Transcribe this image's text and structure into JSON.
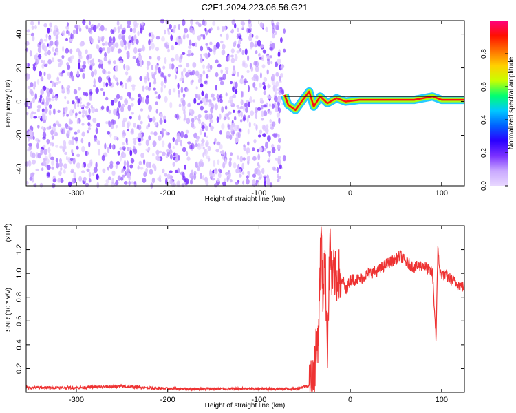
{
  "figure": {
    "title": "C2E1.2024.223.06.56.G21"
  },
  "chart_data": [
    {
      "type": "heatmap",
      "xlabel": "Height of straight line (km)",
      "ylabel": "Frequency (Hz)",
      "xlim": [
        -355,
        125
      ],
      "ylim": [
        -50,
        48
      ],
      "xticks": [
        -300,
        -200,
        -100,
        0,
        100
      ],
      "yticks": [
        -40,
        -20,
        0,
        20,
        40
      ],
      "colorbar": {
        "label": "Normalized spectral amplitude",
        "range": [
          0,
          1
        ],
        "ticks": [
          0.0,
          0.2,
          0.4,
          0.6,
          0.8
        ],
        "colors": [
          "#e8d8ff",
          "#c9a8ff",
          "#7a30ff",
          "#2a00ff",
          "#0060ff",
          "#00c8ff",
          "#00ff70",
          "#c8ff00",
          "#ffd000",
          "#ff7000",
          "#ff1000",
          "#ff0080"
        ]
      },
      "features": {
        "noise_region_x": [
          -355,
          -72
        ],
        "noise_amplitude_range": [
          0.02,
          0.2
        ],
        "signal_start_x": -72,
        "signal_ridge": [
          {
            "x": -72,
            "y": 4
          },
          {
            "x": -68,
            "y": -2
          },
          {
            "x": -60,
            "y": -5
          },
          {
            "x": -52,
            "y": 1
          },
          {
            "x": -45,
            "y": 6
          },
          {
            "x": -40,
            "y": -3
          },
          {
            "x": -33,
            "y": 3
          },
          {
            "x": -25,
            "y": -1
          },
          {
            "x": -15,
            "y": 2
          },
          {
            "x": -5,
            "y": 0
          },
          {
            "x": 10,
            "y": 1
          },
          {
            "x": 40,
            "y": 1
          },
          {
            "x": 70,
            "y": 1
          },
          {
            "x": 90,
            "y": 3
          },
          {
            "x": 100,
            "y": 1
          },
          {
            "x": 125,
            "y": 1
          }
        ]
      }
    },
    {
      "type": "line",
      "xlabel": "Height of straight line (km)",
      "ylabel": "SNR (10 * v/v)",
      "yscale_label": "(x10",
      "yscale_exponent": "4",
      "yscale_suffix": ")",
      "xlim": [
        -355,
        125
      ],
      "ylim": [
        0,
        1.4
      ],
      "xticks": [
        -300,
        -200,
        -100,
        0,
        100
      ],
      "yticks": [
        0.2,
        0.4,
        0.6,
        0.8,
        1.0,
        1.2
      ],
      "series": [
        {
          "color": "#ee3333",
          "x": [
            -355,
            -300,
            -250,
            -200,
            -150,
            -100,
            -60,
            -45,
            -40,
            -35,
            -32,
            -30,
            -28,
            -25,
            -22,
            -20,
            -18,
            -15,
            -12,
            -10,
            -8,
            -5,
            0,
            10,
            20,
            30,
            40,
            50,
            55,
            60,
            70,
            80,
            90,
            94,
            96,
            98,
            100,
            110,
            120,
            125
          ],
          "y": [
            0.04,
            0.04,
            0.05,
            0.03,
            0.03,
            0.03,
            0.03,
            0.06,
            0.15,
            0.5,
            1.35,
            0.8,
            1.2,
            0.4,
            1.3,
            0.9,
            1.0,
            0.95,
            1.0,
            0.9,
            0.95,
            0.85,
            0.95,
            0.95,
            1.0,
            1.02,
            1.08,
            1.12,
            1.15,
            1.1,
            1.05,
            1.07,
            1.0,
            0.45,
            1.25,
            1.0,
            1.0,
            0.95,
            0.9,
            0.88
          ]
        }
      ]
    }
  ]
}
